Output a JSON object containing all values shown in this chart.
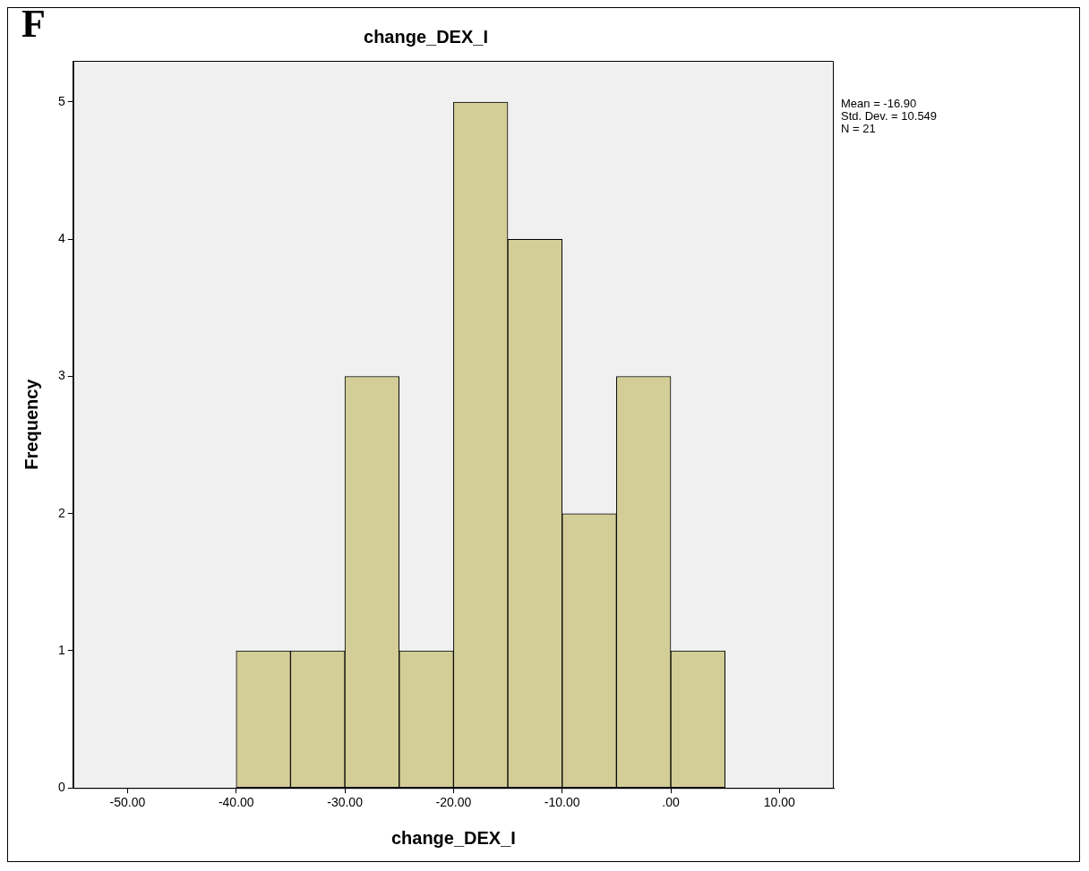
{
  "chart_data": {
    "type": "histogram",
    "title": "change_DEX_I",
    "xlabel": "change_DEX_I",
    "ylabel": "Frequency",
    "bins": [
      -40,
      -35,
      -30,
      -25,
      -20,
      -15,
      -10,
      -5,
      0,
      5
    ],
    "values": [
      1,
      1,
      3,
      1,
      5,
      4,
      2,
      3,
      1
    ],
    "color": "#d3ce98",
    "xlim": [
      -55,
      15
    ],
    "xticks": [
      {
        "value": -50,
        "label": "-50.00"
      },
      {
        "value": -40,
        "label": "-40.00"
      },
      {
        "value": -30,
        "label": "-30.00"
      },
      {
        "value": -20,
        "label": "-20.00"
      },
      {
        "value": -10,
        "label": "-10.00"
      },
      {
        "value": 0,
        "label": ".00"
      },
      {
        "value": 10,
        "label": "10.00"
      }
    ],
    "ylim": [
      0,
      5.3
    ],
    "yticks": [
      0,
      1,
      2,
      3,
      4,
      5
    ],
    "grid": false,
    "legend": false,
    "annotations": [
      "F",
      "Mean = -16.90",
      "Std. Dev. = 10.549",
      "N = 21"
    ]
  }
}
